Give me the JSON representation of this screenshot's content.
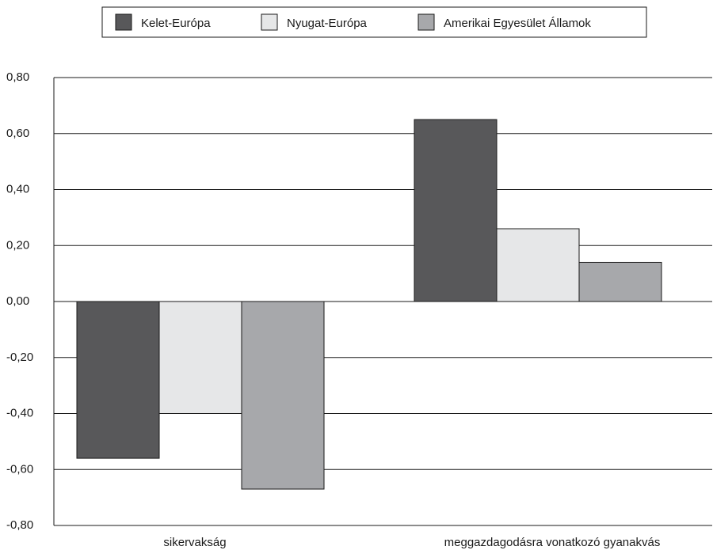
{
  "chart_data": {
    "type": "bar",
    "title": "",
    "xlabel": "",
    "ylabel": "",
    "categories": [
      "sikervakság",
      "meggazdagodásra vonatkozó gyanakvás"
    ],
    "series": [
      {
        "name": "Kelet-Európa",
        "color": "#58585a",
        "values": [
          -0.56,
          0.65
        ]
      },
      {
        "name": "Nyugat-Európa",
        "color": "#e6e7e8",
        "values": [
          -0.4,
          0.26
        ]
      },
      {
        "name": "Amerikai Egyesület Államok",
        "color": "#a7a8ab",
        "values": [
          -0.67,
          0.14
        ]
      }
    ],
    "ylim": [
      -0.8,
      0.8
    ],
    "yticks": [
      "0,80",
      "0,60",
      "0,40",
      "0,20",
      "0,00",
      "-0,20",
      "-0,40",
      "-0,60",
      "-0,80"
    ],
    "ytick_values": [
      0.8,
      0.6,
      0.4,
      0.2,
      0.0,
      -0.2,
      -0.4,
      -0.6,
      -0.8
    ],
    "grid": true,
    "legend_position": "top"
  }
}
